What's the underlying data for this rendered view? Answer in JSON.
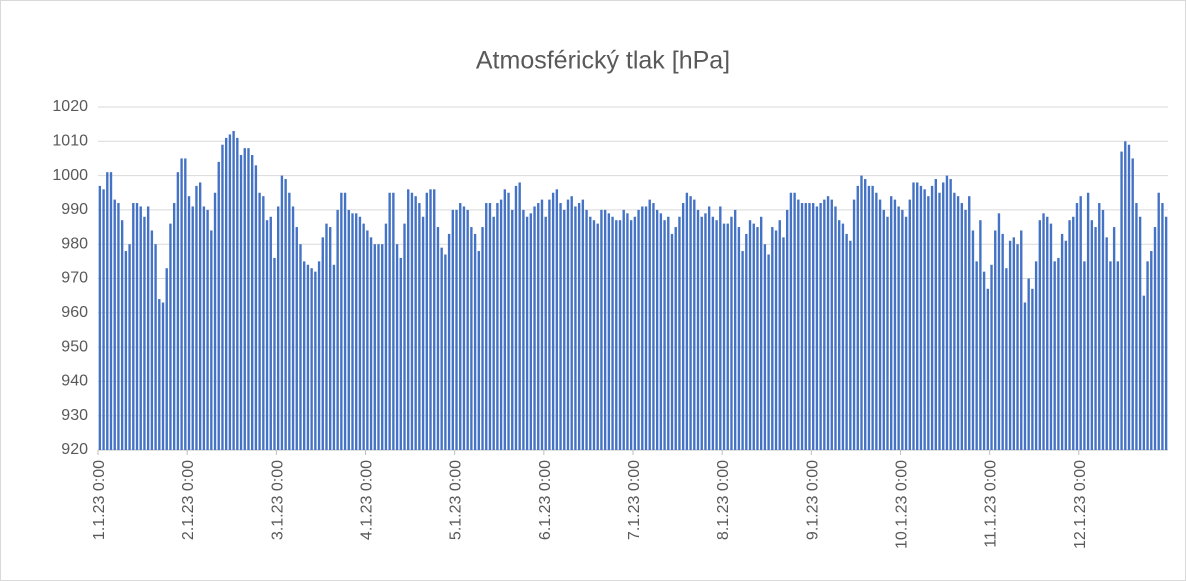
{
  "chart_data": {
    "type": "bar",
    "title": "Atmosférický tlak [hPa]",
    "categories": [
      "1.1.23 0:00",
      null,
      null,
      null,
      null,
      null,
      null,
      null,
      null,
      null,
      null,
      null,
      null,
      null,
      null,
      null,
      null,
      null,
      null,
      null,
      null,
      null,
      null,
      null,
      "2.1.23 0:00",
      null,
      null,
      null,
      null,
      null,
      null,
      null,
      null,
      null,
      null,
      null,
      null,
      null,
      null,
      null,
      null,
      null,
      null,
      null,
      null,
      null,
      null,
      null,
      "3.1.23 0:00",
      null,
      null,
      null,
      null,
      null,
      null,
      null,
      null,
      null,
      null,
      null,
      null,
      null,
      null,
      null,
      null,
      null,
      null,
      null,
      null,
      null,
      null,
      null,
      "4.1.23 0:00",
      null,
      null,
      null,
      null,
      null,
      null,
      null,
      null,
      null,
      null,
      null,
      null,
      null,
      null,
      null,
      null,
      null,
      null,
      null,
      null,
      null,
      null,
      null,
      "5.1.23 0:00",
      null,
      null,
      null,
      null,
      null,
      null,
      null,
      null,
      null,
      null,
      null,
      null,
      null,
      null,
      null,
      null,
      null,
      null,
      null,
      null,
      null,
      null,
      null,
      "6.1.23 0:00",
      null,
      null,
      null,
      null,
      null,
      null,
      null,
      null,
      null,
      null,
      null,
      null,
      null,
      null,
      null,
      null,
      null,
      null,
      null,
      null,
      null,
      null,
      null,
      "7.1.23 0:00",
      null,
      null,
      null,
      null,
      null,
      null,
      null,
      null,
      null,
      null,
      null,
      null,
      null,
      null,
      null,
      null,
      null,
      null,
      null,
      null,
      null,
      null,
      null,
      "8.1.23 0:00",
      null,
      null,
      null,
      null,
      null,
      null,
      null,
      null,
      null,
      null,
      null,
      null,
      null,
      null,
      null,
      null,
      null,
      null,
      null,
      null,
      null,
      null,
      null,
      "9.1.23 0:00",
      null,
      null,
      null,
      null,
      null,
      null,
      null,
      null,
      null,
      null,
      null,
      null,
      null,
      null,
      null,
      null,
      null,
      null,
      null,
      null,
      null,
      null,
      null,
      "10.1.23 0:00",
      null,
      null,
      null,
      null,
      null,
      null,
      null,
      null,
      null,
      null,
      null,
      null,
      null,
      null,
      null,
      null,
      null,
      null,
      null,
      null,
      null,
      null,
      null,
      "11.1.23 0:00",
      null,
      null,
      null,
      null,
      null,
      null,
      null,
      null,
      null,
      null,
      null,
      null,
      null,
      null,
      null,
      null,
      null,
      null,
      null,
      null,
      null,
      null,
      null,
      "12.1.23 0:00",
      null,
      null,
      null,
      null,
      null,
      null,
      null,
      null,
      null,
      null,
      null,
      null,
      null,
      null,
      null,
      null,
      null,
      null,
      null,
      null,
      null,
      null,
      null
    ],
    "values": [
      997,
      996,
      1001,
      1001,
      993,
      992,
      987,
      978,
      980,
      992,
      992,
      991,
      988,
      991,
      984,
      980,
      964,
      963,
      973,
      986,
      992,
      1001,
      1005,
      1005,
      994,
      991,
      997,
      998,
      991,
      990,
      984,
      995,
      1004,
      1009,
      1011,
      1012,
      1013,
      1011,
      1006,
      1008,
      1008,
      1006,
      1003,
      995,
      994,
      987,
      988,
      976,
      991,
      1000,
      999,
      995,
      991,
      985,
      980,
      975,
      974,
      973,
      972,
      975,
      982,
      986,
      985,
      974,
      990,
      995,
      995,
      990,
      989,
      989,
      988,
      986,
      984,
      982,
      980,
      980,
      980,
      986,
      995,
      995,
      980,
      976,
      986,
      996,
      995,
      994,
      992,
      988,
      995,
      996,
      996,
      985,
      979,
      977,
      983,
      990,
      990,
      992,
      991,
      990,
      985,
      983,
      978,
      985,
      992,
      992,
      988,
      992,
      993,
      996,
      995,
      990,
      997,
      998,
      990,
      988,
      989,
      991,
      992,
      993,
      988,
      993,
      995,
      996,
      992,
      990,
      993,
      994,
      991,
      992,
      993,
      990,
      988,
      987,
      986,
      990,
      990,
      989,
      988,
      987,
      987,
      990,
      989,
      987,
      988,
      990,
      991,
      991,
      993,
      992,
      990,
      989,
      987,
      988,
      983,
      985,
      988,
      992,
      995,
      994,
      993,
      990,
      988,
      989,
      991,
      988,
      987,
      991,
      986,
      986,
      988,
      990,
      985,
      978,
      983,
      987,
      986,
      985,
      988,
      980,
      977,
      985,
      984,
      987,
      982,
      990,
      995,
      995,
      993,
      992,
      992,
      992,
      992,
      991,
      992,
      993,
      994,
      993,
      991,
      987,
      986,
      983,
      981,
      993,
      997,
      1000,
      999,
      997,
      997,
      995,
      993,
      990,
      988,
      994,
      993,
      991,
      990,
      988,
      993,
      998,
      998,
      997,
      996,
      994,
      997,
      999,
      995,
      998,
      1000,
      999,
      995,
      994,
      992,
      990,
      994,
      984,
      975,
      987,
      972,
      967,
      974,
      984,
      989,
      983,
      973,
      981,
      982,
      980,
      984,
      963,
      970,
      967,
      975,
      987,
      989,
      988,
      986,
      975,
      976,
      983,
      981,
      987,
      988,
      992,
      994,
      975,
      995,
      987,
      985,
      992,
      990,
      982,
      975,
      985,
      975,
      1007,
      1010,
      1009,
      1005,
      992,
      988,
      965,
      975,
      978,
      985,
      995,
      992,
      988
    ],
    "color": "#4472c4",
    "ylim": [
      920,
      1020
    ],
    "yticks": [
      920,
      930,
      940,
      950,
      960,
      970,
      980,
      990,
      1000,
      1010,
      1020
    ],
    "grid": true
  }
}
